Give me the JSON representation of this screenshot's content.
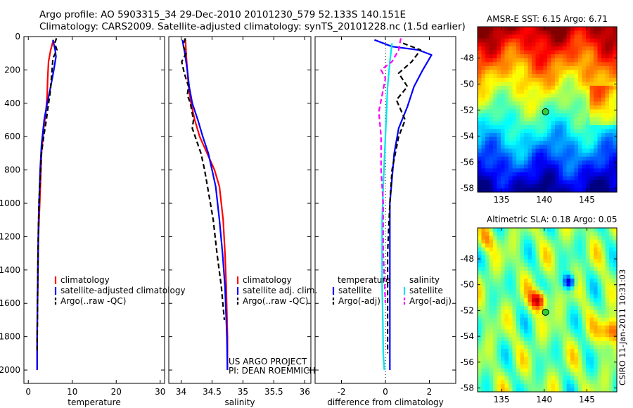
{
  "header": {
    "line1": "Argo profile: AO 5903315_34 29-Dec-2010 20101230_579 52.133S 140.151E",
    "line2": "Climatology: CARS2009. Satellite-adjusted climatology: synTS_20101228.nc (1.5d earlier)"
  },
  "credit": "CSIRO 11-Jan-2011 10:31:03",
  "chart_data": [
    {
      "type": "line",
      "xlabel": "temperature",
      "ylabel": "",
      "xlim": [
        -1,
        31
      ],
      "ylim": [
        2080,
        0
      ],
      "x_ticks": [
        0,
        10,
        20,
        30
      ],
      "y_ticks": [
        0,
        200,
        400,
        600,
        800,
        1000,
        1200,
        1400,
        1600,
        1800,
        2000
      ],
      "legend": "lower-left",
      "legend_entries": [
        "climatology",
        "satellite-adjusted climatology",
        "Argo(..raw -QC)"
      ],
      "series": [
        {
          "name": "climatology",
          "color": "#ff0000",
          "style": "solid",
          "x": [
            5.7,
            5.1,
            4.6,
            4.4,
            4.3,
            4.0,
            3.5,
            3.0,
            2.8,
            2.6,
            2.3,
            2.2,
            2.1,
            2.0,
            2.0
          ],
          "y": [
            20,
            80,
            150,
            250,
            350,
            450,
            550,
            700,
            850,
            1000,
            1200,
            1400,
            1600,
            1800,
            2000
          ]
        },
        {
          "name": "satellite-adjusted climatology",
          "color": "#0000ff",
          "style": "solid",
          "x": [
            5.6,
            6.1,
            6.3,
            5.8,
            5.1,
            4.3,
            3.6,
            3.0,
            2.7,
            2.5,
            2.3,
            2.2,
            2.1,
            2.0,
            2.0
          ],
          "y": [
            20,
            80,
            120,
            200,
            300,
            400,
            500,
            650,
            800,
            950,
            1150,
            1350,
            1550,
            1800,
            2000
          ]
        },
        {
          "name": "Argo(..raw -QC)",
          "color": "#000000",
          "style": "dashed",
          "x": [
            6.4,
            6.0,
            6.5,
            5.6,
            5.4,
            5.1,
            4.9,
            4.5,
            4.1,
            3.5,
            3.0,
            2.7,
            2.4,
            2.2,
            2.1,
            2.0
          ],
          "y": [
            10,
            40,
            80,
            130,
            200,
            300,
            350,
            420,
            500,
            600,
            700,
            850,
            1000,
            1300,
            1600,
            1900
          ]
        }
      ]
    },
    {
      "type": "line",
      "xlabel": "salinity",
      "ylabel": "",
      "xlim": [
        33.8,
        36.1
      ],
      "ylim": [
        2080,
        0
      ],
      "x_ticks": [
        34,
        34.5,
        35,
        35.5,
        36
      ],
      "legend": "lower-right",
      "legend_entries": [
        "climatology",
        "satellite adj. clim.",
        "Argo(..raw -QC)"
      ],
      "annotations": [
        "US ARGO PROJECT",
        "PI: DEAN ROEMMICH"
      ],
      "series": [
        {
          "name": "climatology",
          "color": "#ff0000",
          "style": "solid",
          "x": [
            34.07,
            34.08,
            34.1,
            34.12,
            34.16,
            34.22,
            34.3,
            34.42,
            34.54,
            34.62,
            34.68,
            34.71,
            34.73,
            34.75,
            34.75
          ],
          "y": [
            20,
            100,
            200,
            300,
            400,
            500,
            600,
            700,
            800,
            900,
            1100,
            1300,
            1500,
            1800,
            2000
          ]
        },
        {
          "name": "satellite adj. clim.",
          "color": "#0000ff",
          "style": "solid",
          "x": [
            34.02,
            34.06,
            34.1,
            34.13,
            34.18,
            34.27,
            34.35,
            34.44,
            34.5,
            34.56,
            34.62,
            34.67,
            34.71,
            34.74,
            34.75
          ],
          "y": [
            20,
            100,
            200,
            300,
            400,
            500,
            600,
            700,
            800,
            900,
            1100,
            1300,
            1500,
            1800,
            2000
          ]
        },
        {
          "name": "Argo(..raw -QC)",
          "color": "#000000",
          "style": "dashed",
          "x": [
            34.07,
            34.03,
            34.08,
            34.01,
            34.05,
            34.12,
            34.1,
            34.15,
            34.2,
            34.18,
            34.32,
            34.38,
            34.45,
            34.52,
            34.58,
            34.65,
            34.7
          ],
          "y": [
            10,
            50,
            100,
            150,
            220,
            300,
            350,
            400,
            500,
            550,
            700,
            800,
            950,
            1100,
            1300,
            1500,
            1700
          ]
        }
      ]
    },
    {
      "type": "line",
      "xlabel": "difference from climatology",
      "ylabel": "",
      "xlim": [
        -3.2,
        3.2
      ],
      "ylim": [
        2080,
        0
      ],
      "x_ticks": [
        -2,
        0,
        2
      ],
      "legend": "lower-left",
      "legend_groups": [
        {
          "title": "temperature",
          "entries": [
            "satellite",
            "Argo(-adj)"
          ]
        },
        {
          "title": "salinity",
          "entries": [
            "satellite",
            "Argo(-adj)"
          ]
        }
      ],
      "series": [
        {
          "name": "temperature satellite",
          "color": "#0000ff",
          "style": "solid",
          "x": [
            -0.5,
            0.3,
            1.5,
            2.1,
            1.7,
            1.3,
            1.0,
            0.6,
            0.4,
            0.3,
            0.2,
            0.2,
            0.2,
            0.2
          ],
          "y": [
            20,
            60,
            80,
            110,
            200,
            300,
            420,
            550,
            700,
            850,
            1000,
            1300,
            1700,
            2000
          ]
        },
        {
          "name": "temperature Argo(-adj)",
          "color": "#000000",
          "style": "dashed",
          "x": [
            0.8,
            1.6,
            1.2,
            0.6,
            1.0,
            0.5,
            0.9,
            0.6,
            0.3,
            0.2,
            0.1,
            0.1,
            0.1
          ],
          "y": [
            40,
            80,
            150,
            220,
            300,
            380,
            500,
            600,
            800,
            1000,
            1300,
            1600,
            1900
          ]
        },
        {
          "name": "salinity satellite",
          "color": "#00e5ee",
          "style": "solid",
          "x": [
            0.3,
            0.2,
            0.1,
            0.05,
            0.0,
            -0.05,
            -0.1,
            -0.15,
            -0.15,
            -0.15,
            -0.12,
            -0.1,
            -0.05
          ],
          "y": [
            40,
            150,
            300,
            450,
            600,
            750,
            900,
            1100,
            1300,
            1500,
            1700,
            1900,
            2000
          ]
        },
        {
          "name": "salinity Argo(-adj)",
          "color": "#ff00ff",
          "style": "dashed",
          "x": [
            0.7,
            0.6,
            0.3,
            -0.2,
            0.0,
            -0.3,
            -0.2,
            -0.2,
            -0.1,
            -0.1,
            0.0
          ],
          "y": [
            10,
            80,
            150,
            200,
            250,
            450,
            600,
            800,
            1000,
            1300,
            1600
          ]
        }
      ]
    }
  ],
  "maps": [
    {
      "title": "AMSR-E SST: 6.15 Argo: 6.71",
      "x_ticks": [
        135,
        140,
        145
      ],
      "xlim": [
        132.2,
        148.5
      ],
      "y_ticks": [
        -48,
        -50,
        -52,
        -54,
        -56,
        -58
      ],
      "ylim": [
        -58.3,
        -45.6
      ],
      "marker": {
        "lon": 140.151,
        "lat": -52.133
      },
      "colorscale": "jet"
    },
    {
      "title": "Altimetric SLA: 0.18 Argo: 0.05",
      "x_ticks": [
        135,
        140,
        145
      ],
      "xlim": [
        132.2,
        148.5
      ],
      "y_ticks": [
        -48,
        -50,
        -52,
        -54,
        -56,
        -58
      ],
      "ylim": [
        -58.3,
        -45.6
      ],
      "marker": {
        "lon": 140.151,
        "lat": -52.133
      },
      "colorscale": "jet"
    }
  ]
}
